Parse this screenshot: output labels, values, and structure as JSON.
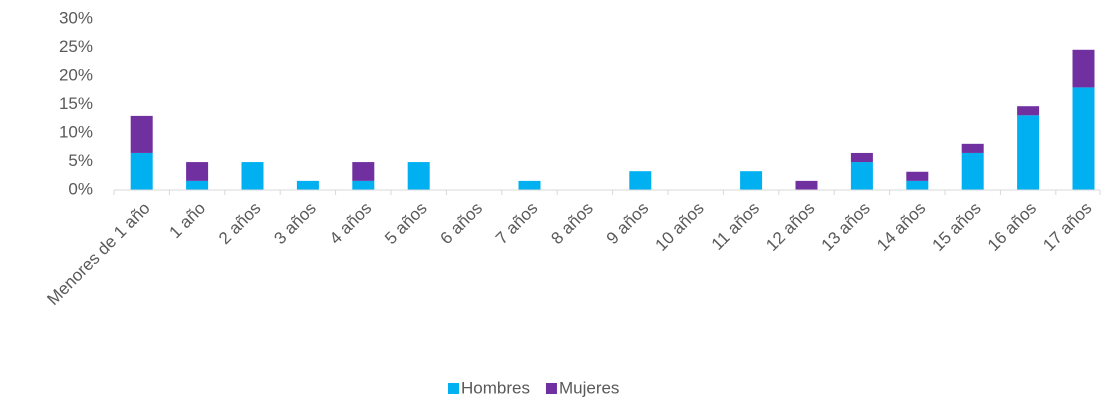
{
  "chart_data": {
    "type": "stacked_bar",
    "categories": [
      "Menores de 1 año",
      "1 año",
      "2 años",
      "3 años",
      "4 años",
      "5 años",
      "6 años",
      "7 años",
      "8 años",
      "9 años",
      "10 años",
      "11 años",
      "12 años",
      "13 años",
      "14 años",
      "15 años",
      "16 años",
      "17 años"
    ],
    "series": [
      {
        "name": "Hombres",
        "color": "#00b0f0",
        "values": [
          6.5,
          1.6,
          4.9,
          1.6,
          1.6,
          4.9,
          0,
          1.6,
          0,
          3.3,
          0,
          3.3,
          0,
          4.9,
          1.6,
          6.5,
          13.1,
          18.0
        ]
      },
      {
        "name": "Mujeres",
        "color": "#7030a0",
        "values": [
          6.5,
          3.3,
          0,
          0,
          3.3,
          0,
          0,
          0,
          0,
          0,
          0,
          0,
          1.6,
          1.6,
          1.6,
          1.6,
          1.6,
          6.6
        ]
      }
    ],
    "ylim": [
      0,
      30
    ],
    "yticks": [
      {
        "value": 0,
        "label": "0%"
      },
      {
        "value": 5,
        "label": "5%"
      },
      {
        "value": 10,
        "label": "10%"
      },
      {
        "value": 15,
        "label": "15%"
      },
      {
        "value": 20,
        "label": "20%"
      },
      {
        "value": 25,
        "label": "25%"
      },
      {
        "value": 30,
        "label": "30%"
      }
    ],
    "legend": "bottom"
  }
}
